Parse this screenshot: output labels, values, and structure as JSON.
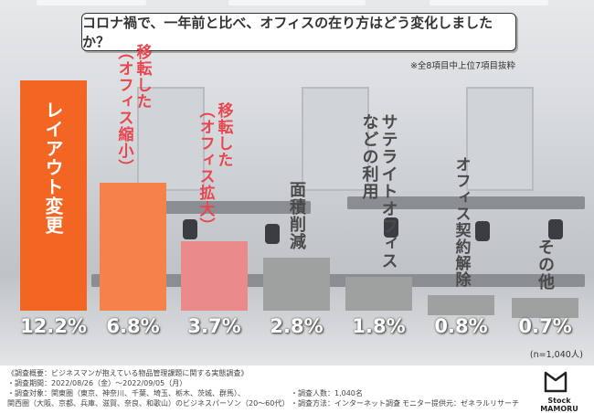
{
  "title": "コロナ禍で、一年前と比べ、オフィスの在り方はどう変化しましたか？",
  "note": "※全8項目中上位7項目抜粋",
  "sample_size": "(n=1,040人)",
  "footer": {
    "line1": "《調査概要：ビジネスマンが抱えている物品管理課題に関する実態調査》",
    "line2": "・調査期間：2022/08/26（金）〜2022/09/05（月）",
    "line3": "・調査対象：関東圏（東京、神奈川、千葉、埼玉、栃木、茨城、群馬）、",
    "line4": "関西圏（大阪、京都、兵庫、滋賀、奈良、和歌山）のビジネスパーソン（20〜60代）",
    "people": "・調査人数：1,040名",
    "method": "・調査方法：インターネット調査",
    "provider": "・モニター提供元：ゼネラルリサーチ"
  },
  "logo": "Stock MAMORU",
  "colors": {
    "bar1": "#f26522",
    "bar2": "#f6824a",
    "bar3": "#eb8a8a",
    "gray": "#9fa0a0",
    "label_red": "#e8464f",
    "label_gray": "#4a4a4a"
  },
  "chart_data": {
    "type": "bar",
    "title": "コロナ禍で、一年前と比べ、オフィスの在り方はどう変化しましたか？",
    "categories": [
      "レイアウト変更",
      "移転した（オフィス縮小）",
      "移転した（オフィス拡大）",
      "面積削減",
      "サテライトオフィスなどの利用",
      "オフィス契約解除",
      "その他"
    ],
    "display_labels": [
      [
        "レイアウト変更"
      ],
      [
        "移転した",
        "（オフィス縮小）"
      ],
      [
        "移転した",
        "（オフィス拡大）"
      ],
      [
        "面積削減"
      ],
      [
        "サテライトオフィス",
        "などの利用"
      ],
      [
        "オフィス契約解除"
      ],
      [
        "その他"
      ]
    ],
    "values": [
      12.2,
      6.8,
      3.7,
      2.8,
      1.8,
      0.8,
      0.7
    ],
    "value_labels": [
      "12.2%",
      "6.8%",
      "3.7%",
      "2.8%",
      "1.8%",
      "0.8%",
      "0.7%"
    ],
    "unit": "%",
    "ylim": [
      0,
      12.2
    ],
    "grid": false,
    "legend": "none"
  }
}
